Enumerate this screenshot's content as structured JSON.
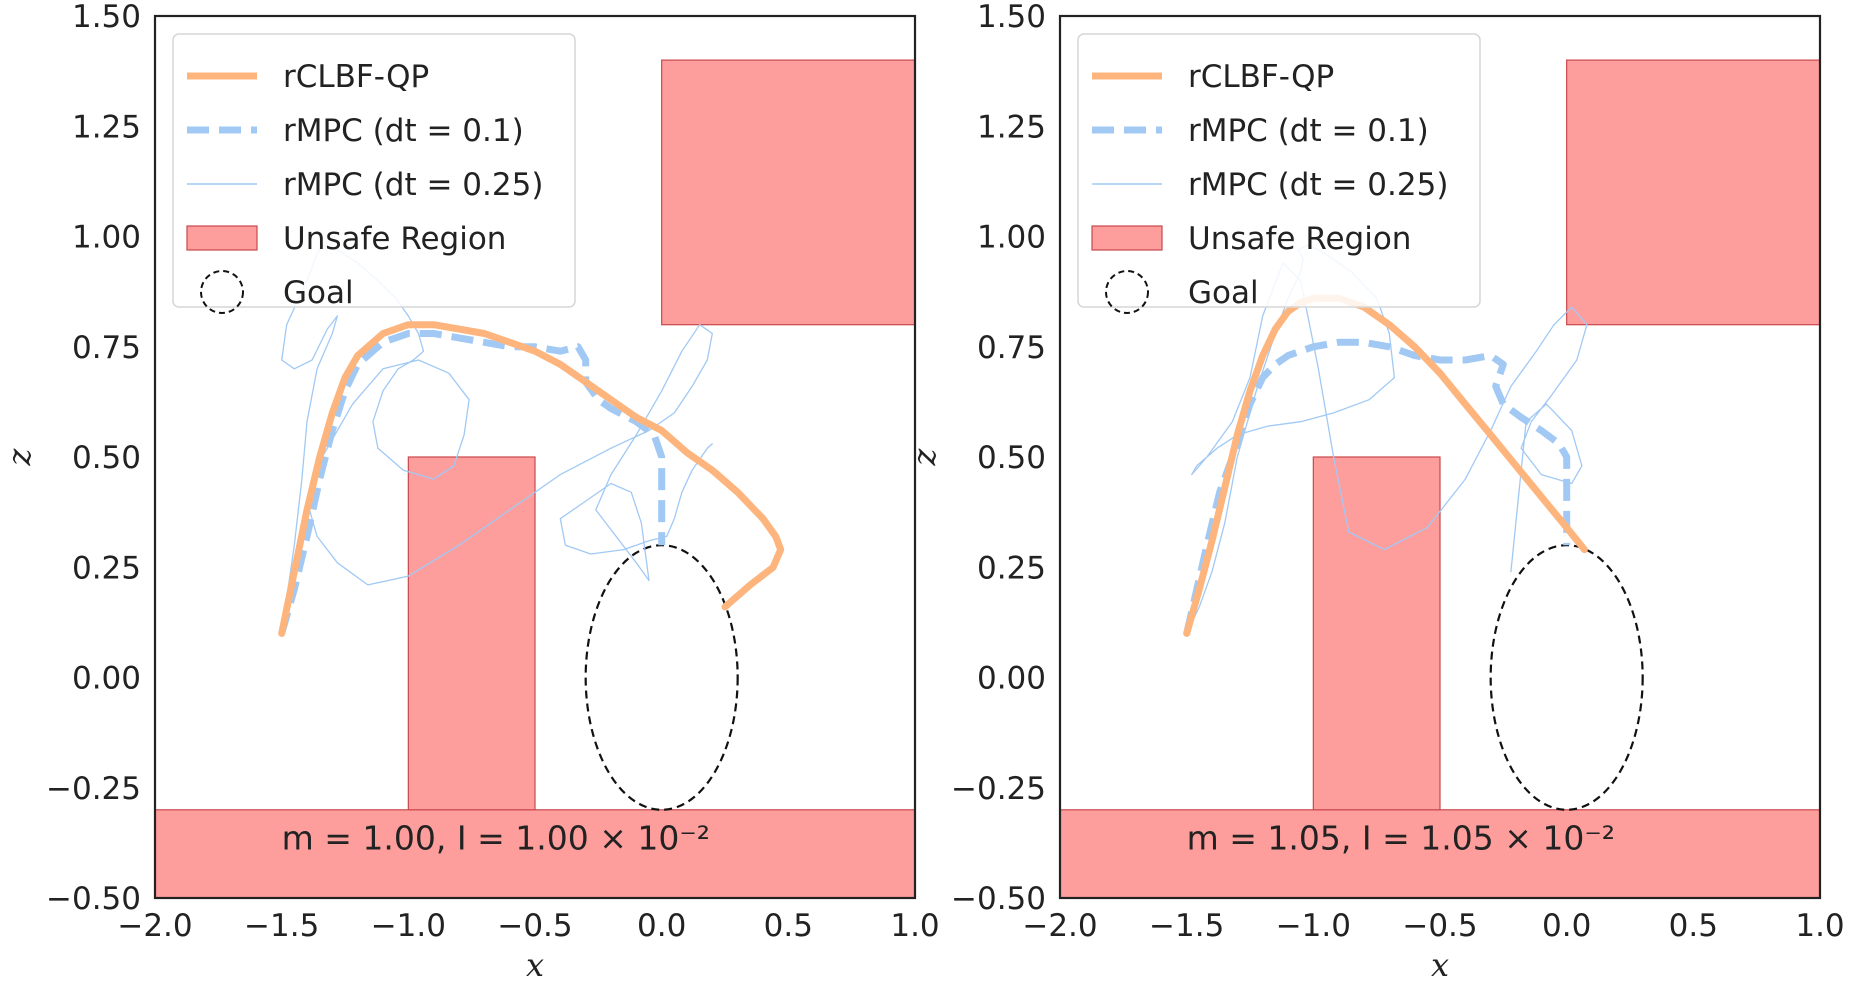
{
  "chart_data": [
    {
      "type": "line",
      "xlabel": "x",
      "ylabel": "z",
      "xlim": [
        -2.0,
        1.0
      ],
      "ylim": [
        -0.5,
        1.5
      ],
      "xticks": [
        -2.0,
        -1.5,
        -1.0,
        -0.5,
        0.0,
        0.5,
        1.0
      ],
      "yticks": [
        -0.5,
        -0.25,
        0.0,
        0.25,
        0.5,
        0.75,
        1.0,
        1.25,
        1.5
      ],
      "xtick_labels": [
        "−2.0",
        "−1.5",
        "−1.0",
        "−0.5",
        "0.0",
        "0.5",
        "1.0"
      ],
      "ytick_labels": [
        "−0.50",
        "−0.25",
        "0.00",
        "0.25",
        "0.50",
        "0.75",
        "1.00",
        "1.25",
        "1.50"
      ],
      "grid": false,
      "legend_position": "top-left",
      "annotation": "m = 1.00, I = 1.00 × 10⁻²",
      "unsafe_regions": [
        {
          "x": [
            -2.0,
            1.0
          ],
          "z": [
            -0.5,
            -0.3
          ]
        },
        {
          "x": [
            -1.0,
            -0.5
          ],
          "z": [
            -0.3,
            0.5
          ]
        },
        {
          "x": [
            0.0,
            1.0
          ],
          "z": [
            0.8,
            1.4
          ]
        }
      ],
      "goal": {
        "center": [
          0.0,
          0.0
        ],
        "rx": 0.3,
        "rz": 0.3
      },
      "series": [
        {
          "name": "rCLBF-QP",
          "color": "#fdb47d",
          "style": "solid-thick",
          "x": [
            -1.5,
            -1.45,
            -1.4,
            -1.35,
            -1.3,
            -1.25,
            -1.2,
            -1.1,
            -1.0,
            -0.9,
            -0.8,
            -0.7,
            -0.6,
            -0.5,
            -0.4,
            -0.3,
            -0.2,
            -0.1,
            0.0,
            0.1,
            0.2,
            0.3,
            0.4,
            0.45,
            0.47,
            0.44,
            0.35,
            0.25
          ],
          "y": [
            0.1,
            0.24,
            0.38,
            0.5,
            0.6,
            0.68,
            0.73,
            0.78,
            0.8,
            0.8,
            0.79,
            0.78,
            0.76,
            0.74,
            0.71,
            0.67,
            0.63,
            0.59,
            0.56,
            0.51,
            0.47,
            0.42,
            0.36,
            0.32,
            0.29,
            0.25,
            0.21,
            0.16
          ]
        },
        {
          "name": "rMPC (dt = 0.1)",
          "color": "#a1c9f4",
          "style": "dashed-thick",
          "x": [
            -1.5,
            -1.45,
            -1.4,
            -1.35,
            -1.3,
            -1.25,
            -1.2,
            -1.1,
            -1.0,
            -0.9,
            -0.8,
            -0.7,
            -0.6,
            -0.5,
            -0.4,
            -0.33,
            -0.3,
            -0.3,
            -0.25,
            -0.2,
            -0.1,
            -0.03,
            0.0,
            0.0,
            0.0
          ],
          "y": [
            0.1,
            0.2,
            0.32,
            0.45,
            0.56,
            0.65,
            0.71,
            0.76,
            0.78,
            0.78,
            0.77,
            0.76,
            0.75,
            0.75,
            0.74,
            0.75,
            0.72,
            0.67,
            0.63,
            0.61,
            0.58,
            0.55,
            0.5,
            0.4,
            0.3
          ]
        },
        {
          "name": "rMPC (dt = 0.25)",
          "color": "#a1c9f4",
          "style": "solid-thin",
          "x": [
            -1.5,
            -1.45,
            -1.42,
            -1.4,
            -1.36,
            -1.3,
            -1.28,
            -1.32,
            -1.38,
            -1.45,
            -1.5,
            -1.48,
            -1.4,
            -1.36,
            -1.34,
            -1.28,
            -1.2,
            -1.12,
            -1.05,
            -1.0,
            -0.96,
            -0.94,
            -0.98,
            -1.04,
            -1.1,
            -1.14,
            -1.12,
            -1.02,
            -0.9,
            -0.82,
            -0.78,
            -0.76,
            -0.84,
            -0.96,
            -1.1,
            -1.22,
            -1.34,
            -1.4,
            -1.36,
            -1.28,
            -1.16,
            -1.0,
            -0.8,
            -0.6,
            -0.4,
            -0.2,
            -0.05,
            0.05,
            0.12,
            0.18,
            0.2,
            0.15,
            0.08,
            0.0,
            -0.1,
            -0.2,
            -0.26,
            -0.18,
            -0.1,
            -0.05,
            -0.08,
            -0.12,
            -0.2,
            -0.3,
            -0.4,
            -0.38,
            -0.28,
            -0.15,
            -0.05,
            0.02,
            0.05,
            0.08,
            0.12,
            0.18,
            0.2
          ],
          "y": [
            0.1,
            0.3,
            0.45,
            0.58,
            0.7,
            0.78,
            0.82,
            0.79,
            0.72,
            0.7,
            0.72,
            0.8,
            0.9,
            0.96,
            0.98,
            0.97,
            0.94,
            0.9,
            0.86,
            0.82,
            0.78,
            0.74,
            0.72,
            0.7,
            0.65,
            0.58,
            0.52,
            0.47,
            0.45,
            0.48,
            0.55,
            0.63,
            0.69,
            0.72,
            0.7,
            0.62,
            0.5,
            0.4,
            0.32,
            0.26,
            0.21,
            0.23,
            0.3,
            0.38,
            0.46,
            0.52,
            0.56,
            0.6,
            0.66,
            0.72,
            0.78,
            0.8,
            0.74,
            0.65,
            0.55,
            0.46,
            0.38,
            0.32,
            0.26,
            0.22,
            0.35,
            0.42,
            0.44,
            0.4,
            0.36,
            0.3,
            0.28,
            0.29,
            0.31,
            0.32,
            0.36,
            0.42,
            0.47,
            0.52,
            0.53
          ]
        }
      ]
    },
    {
      "type": "line",
      "xlabel": "x",
      "ylabel": "z",
      "xlim": [
        -2.0,
        1.0
      ],
      "ylim": [
        -0.5,
        1.5
      ],
      "xticks": [
        -2.0,
        -1.5,
        -1.0,
        -0.5,
        0.0,
        0.5,
        1.0
      ],
      "yticks": [
        -0.5,
        -0.25,
        0.0,
        0.25,
        0.5,
        0.75,
        1.0,
        1.25,
        1.5
      ],
      "xtick_labels": [
        "−2.0",
        "−1.5",
        "−1.0",
        "−0.5",
        "0.0",
        "0.5",
        "1.0"
      ],
      "ytick_labels": [
        "−0.50",
        "−0.25",
        "0.00",
        "0.25",
        "0.50",
        "0.75",
        "1.00",
        "1.25",
        "1.50"
      ],
      "grid": false,
      "legend_position": "top-left",
      "annotation": "m = 1.05, I = 1.05 × 10⁻²",
      "unsafe_regions": [
        {
          "x": [
            -2.0,
            1.0
          ],
          "z": [
            -0.5,
            -0.3
          ]
        },
        {
          "x": [
            -1.0,
            -0.5
          ],
          "z": [
            -0.3,
            0.5
          ]
        },
        {
          "x": [
            0.0,
            1.0
          ],
          "z": [
            0.8,
            1.4
          ]
        }
      ],
      "goal": {
        "center": [
          0.0,
          0.0
        ],
        "rx": 0.3,
        "rz": 0.3
      },
      "series": [
        {
          "name": "rCLBF-QP",
          "color": "#fdb47d",
          "style": "solid-thick",
          "x": [
            -1.5,
            -1.45,
            -1.4,
            -1.35,
            -1.3,
            -1.25,
            -1.2,
            -1.15,
            -1.1,
            -1.05,
            -1.0,
            -0.95,
            -0.9,
            -0.85,
            -0.8,
            -0.7,
            -0.6,
            -0.5,
            -0.4,
            -0.3,
            -0.2,
            -0.1,
            0.0,
            0.07
          ],
          "y": [
            0.1,
            0.2,
            0.31,
            0.43,
            0.55,
            0.65,
            0.73,
            0.79,
            0.83,
            0.85,
            0.86,
            0.86,
            0.86,
            0.85,
            0.84,
            0.8,
            0.75,
            0.69,
            0.62,
            0.55,
            0.48,
            0.41,
            0.34,
            0.29
          ]
        },
        {
          "name": "rMPC (dt = 0.1)",
          "color": "#a1c9f4",
          "style": "dashed-thick",
          "x": [
            -1.5,
            -1.46,
            -1.42,
            -1.37,
            -1.3,
            -1.25,
            -1.2,
            -1.15,
            -1.1,
            -1.0,
            -0.9,
            -0.8,
            -0.7,
            -0.6,
            -0.5,
            -0.4,
            -0.3,
            -0.25,
            -0.28,
            -0.25,
            -0.18,
            -0.1,
            -0.03,
            0.0,
            0.0,
            0.0
          ],
          "y": [
            0.1,
            0.2,
            0.3,
            0.42,
            0.53,
            0.62,
            0.68,
            0.71,
            0.73,
            0.75,
            0.76,
            0.76,
            0.75,
            0.73,
            0.72,
            0.72,
            0.73,
            0.71,
            0.66,
            0.62,
            0.59,
            0.56,
            0.53,
            0.5,
            0.4,
            0.3
          ]
        },
        {
          "name": "rMPC (dt = 0.25)",
          "color": "#a1c9f4",
          "style": "solid-thin",
          "x": [
            -1.5,
            -1.45,
            -1.4,
            -1.35,
            -1.3,
            -1.22,
            -1.15,
            -1.1,
            -1.05,
            -1.04,
            -1.06,
            -1.02,
            -0.95,
            -0.85,
            -0.75,
            -0.7,
            -0.68,
            -0.78,
            -0.92,
            -1.05,
            -1.18,
            -1.3,
            -1.38,
            -1.46,
            -1.48,
            -1.42,
            -1.32,
            -1.25,
            -1.2,
            -1.12,
            -1.05,
            -0.98,
            -0.92,
            -0.86,
            -0.72,
            -0.55,
            -0.4,
            -0.3,
            -0.22,
            -0.12,
            -0.05,
            0.02,
            0.08,
            0.04,
            -0.06,
            -0.14,
            -0.18,
            -0.1,
            0.02,
            0.06,
            0.02,
            -0.08,
            -0.16,
            -0.22
          ],
          "y": [
            0.1,
            0.16,
            0.24,
            0.35,
            0.5,
            0.66,
            0.78,
            0.86,
            0.92,
            0.95,
            0.97,
            0.98,
            0.96,
            0.92,
            0.86,
            0.78,
            0.68,
            0.63,
            0.6,
            0.58,
            0.57,
            0.55,
            0.52,
            0.48,
            0.46,
            0.5,
            0.58,
            0.68,
            0.82,
            0.94,
            0.9,
            0.7,
            0.5,
            0.33,
            0.29,
            0.34,
            0.45,
            0.56,
            0.66,
            0.74,
            0.8,
            0.84,
            0.8,
            0.72,
            0.64,
            0.58,
            0.52,
            0.46,
            0.44,
            0.48,
            0.56,
            0.62,
            0.58,
            0.24
          ]
        }
      ]
    }
  ],
  "legend": {
    "items": [
      {
        "label": "rCLBF-QP",
        "kind": "line-thick",
        "color": "#fdb47d"
      },
      {
        "label": "rMPC (dt = 0.1)",
        "kind": "line-dashed",
        "color": "#a1c9f4"
      },
      {
        "label": "rMPC (dt = 0.25)",
        "kind": "line-thin",
        "color": "#a1c9f4"
      },
      {
        "label": "Unsafe Region",
        "kind": "patch",
        "color": "#fd9e9c"
      },
      {
        "label": "Goal",
        "kind": "circle-dashed",
        "color": "#111111"
      }
    ]
  },
  "colors": {
    "unsafe_fill": "#fd9e9c",
    "unsafe_edge": "#c8484c",
    "axis": "#222222"
  }
}
